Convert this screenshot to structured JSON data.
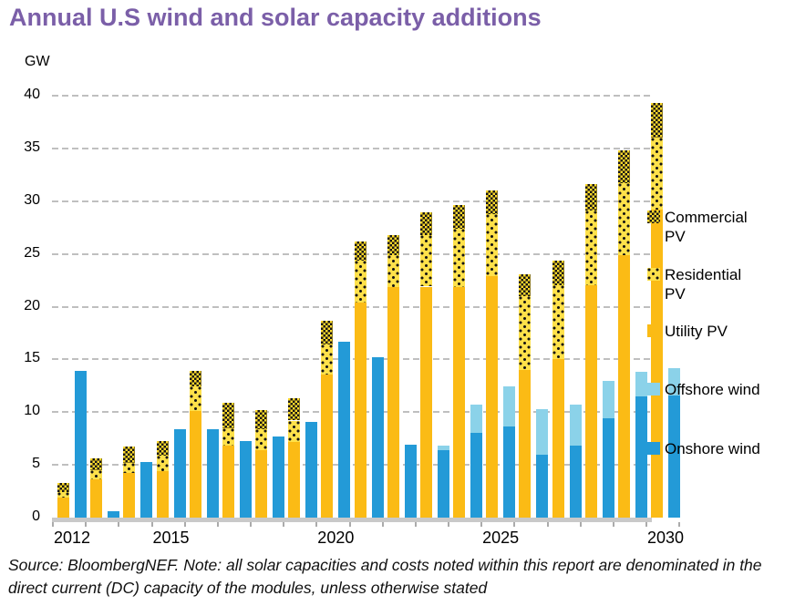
{
  "title": "Annual U.S wind and solar capacity additions",
  "y_axis": {
    "unit_label": "GW",
    "ticks": [
      0,
      5,
      10,
      15,
      20,
      25,
      30,
      35,
      40
    ],
    "max": 40
  },
  "x_axis": {
    "labeled_years": [
      "2012",
      "2015",
      "2020",
      "2025",
      "2030"
    ]
  },
  "legend": {
    "items": [
      {
        "name": "commercial-pv",
        "label": "Commercial\nPV",
        "swatch": "checker-yellow"
      },
      {
        "name": "residential-pv",
        "label": "Residential\nPV",
        "swatch": "dotted-yellow"
      },
      {
        "name": "utility-pv",
        "label": "Utility PV",
        "swatch": "solid-yellow"
      },
      {
        "name": "offshore-wind",
        "label": "Offshore wind",
        "swatch": "light-blue"
      },
      {
        "name": "onshore-wind",
        "label": "Onshore wind",
        "swatch": "blue"
      }
    ]
  },
  "source_note": "Source: BloombergNEF.  Note: all solar capacities and costs noted within this report are denominated in the direct current (DC) capacity of the modules, unless otherwise stated",
  "colors": {
    "title": "#7B5FA8",
    "utility_pv": "#FBBB15",
    "residential_pv_base": "#FFE14A",
    "commercial_pv_base": "#FFD92B",
    "pattern_ink": "#151515",
    "onshore_wind": "#239AD7",
    "offshore_wind": "#8BD2E9",
    "gridline": "#BFBFBF",
    "axis": "#C9C9C9"
  },
  "chart_data": {
    "type": "bar",
    "stacked": true,
    "bar_groups_per_category": [
      "solar",
      "wind"
    ],
    "categories": [
      2012,
      2013,
      2014,
      2015,
      2016,
      2017,
      2018,
      2019,
      2020,
      2021,
      2022,
      2023,
      2024,
      2025,
      2026,
      2027,
      2028,
      2029,
      2030
    ],
    "series": [
      {
        "name": "Utility PV",
        "group": "solar",
        "stack_order": 1,
        "values": [
          1.9,
          3.6,
          4.2,
          4.4,
          10.1,
          6.8,
          6.4,
          7.2,
          13.6,
          20.4,
          21.9,
          21.9,
          21.9,
          22.9,
          14.0,
          15.0,
          22.0,
          24.9,
          29.2
        ]
      },
      {
        "name": "Residential PV",
        "group": "solar",
        "stack_order": 2,
        "values": [
          0.5,
          0.9,
          1.0,
          1.5,
          2.3,
          1.7,
          2.0,
          2.0,
          2.8,
          4.0,
          3.0,
          4.9,
          5.5,
          5.9,
          7.0,
          7.0,
          7.1,
          6.8,
          6.8
        ]
      },
      {
        "name": "Commercial PV",
        "group": "solar",
        "stack_order": 3,
        "values": [
          0.9,
          1.1,
          1.5,
          1.4,
          1.5,
          2.4,
          1.8,
          2.1,
          2.3,
          1.8,
          1.9,
          2.1,
          2.2,
          2.2,
          2.1,
          2.4,
          2.5,
          3.1,
          3.3
        ]
      },
      {
        "name": "Onshore wind",
        "group": "wind",
        "stack_order": 1,
        "values": [
          13.9,
          0.6,
          5.3,
          8.4,
          8.4,
          7.3,
          7.7,
          9.1,
          16.7,
          15.2,
          6.9,
          6.4,
          8.0,
          8.6,
          6.0,
          6.8,
          9.4,
          11.5,
          11.6
        ]
      },
      {
        "name": "Offshore wind",
        "group": "wind",
        "stack_order": 2,
        "values": [
          0,
          0,
          0,
          0,
          0,
          0,
          0,
          0,
          0,
          0,
          0,
          0.4,
          2.7,
          3.8,
          4.3,
          3.9,
          3.6,
          2.3,
          2.6
        ]
      }
    ],
    "ylim": [
      0,
      40
    ],
    "grid": "dashed-horizontal",
    "legend_position": "right"
  }
}
